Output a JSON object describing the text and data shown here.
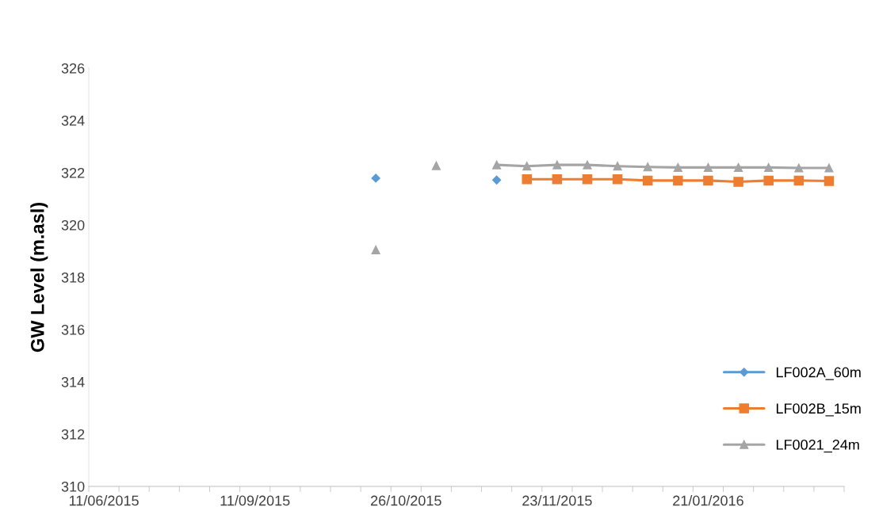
{
  "chart_data": {
    "type": "line",
    "ylabel": "GW Level (m.asl)",
    "categories": [
      "11/06/2015",
      null,
      null,
      null,
      null,
      "11/09/2015",
      null,
      null,
      null,
      null,
      "26/10/2015",
      null,
      null,
      null,
      null,
      "23/11/2015",
      null,
      null,
      null,
      null,
      "21/01/2016",
      null,
      null,
      null,
      null
    ],
    "series": [
      {
        "name": "LF002A_60m",
        "color": "#5b9bd5",
        "marker": "diamond",
        "values": [
          null,
          null,
          null,
          null,
          null,
          null,
          null,
          null,
          null,
          321.79,
          null,
          null,
          null,
          321.72,
          null,
          null,
          null,
          null,
          null,
          null,
          null,
          null,
          null,
          null,
          null
        ]
      },
      {
        "name": "LF002B_15m",
        "color": "#ed7d31",
        "marker": "square",
        "values": [
          null,
          null,
          null,
          null,
          null,
          null,
          null,
          null,
          null,
          null,
          null,
          null,
          null,
          null,
          321.75,
          321.75,
          321.75,
          321.75,
          321.7,
          321.7,
          321.7,
          321.65,
          321.7,
          321.7,
          321.68
        ]
      },
      {
        "name": "LF0021_24m",
        "color": "#a5a5a5",
        "marker": "triangle",
        "values": [
          null,
          null,
          null,
          null,
          null,
          null,
          null,
          null,
          null,
          319.05,
          null,
          322.27,
          null,
          322.3,
          322.25,
          322.3,
          322.3,
          322.25,
          322.22,
          322.2,
          322.2,
          322.2,
          322.2,
          322.18,
          322.18
        ]
      }
    ],
    "ylim": [
      310,
      326
    ],
    "yticks": [
      310,
      312,
      314,
      316,
      318,
      320,
      322,
      324,
      326
    ],
    "grid": false,
    "legend": "bottom right",
    "line_style": "solid"
  }
}
